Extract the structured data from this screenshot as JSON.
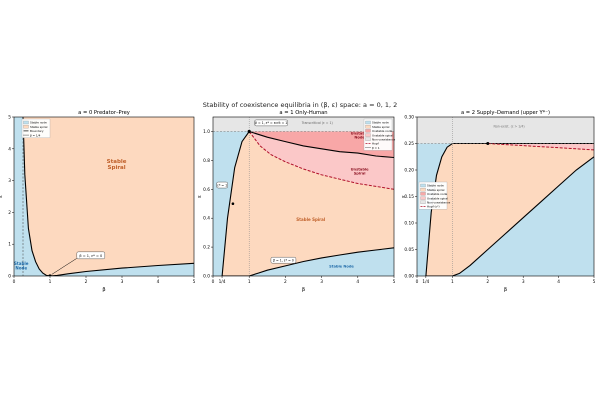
{
  "suptitle": "Stability of coexistence equilibria in (β, ε) space: a = 0, 1, 2",
  "colors": {
    "stable_node": "#bfe0ee",
    "stable_spiral": "#fdd9bf",
    "unstable_node": "#f8a7a7",
    "unstable_spiral": "#fbc8c8",
    "non_coexistence": "#e6e6e6",
    "hopf": "#b0102a",
    "boundary": "#000000"
  },
  "chart_data": [
    {
      "type": "area",
      "title": "a = 0 Predator–Prey",
      "xlabel": "β",
      "ylabel": "ε",
      "xlim": [
        0,
        5
      ],
      "ylim": [
        0,
        5
      ],
      "xticks": [
        "0",
        "1",
        "2",
        "3",
        "4",
        "5"
      ],
      "yticks": [
        "0",
        "1",
        "2",
        "3",
        "4",
        "5"
      ],
      "grid": false,
      "legend_position": "top-left",
      "legend": [
        "Stable node",
        "Stable spiral",
        "Boundary",
        "β = 1/4"
      ],
      "region_labels": {
        "stable_spiral": "Stable\nSpiral",
        "stable_node": "Stable\nNode"
      },
      "annotations": [
        "β = 1, ε* = 0"
      ],
      "boundary": {
        "x": [
          0.25,
          0.3,
          0.4,
          0.5,
          0.6,
          0.7,
          0.8,
          0.9,
          1.0,
          1.2,
          1.5,
          2.0,
          3.0,
          4.0,
          5.0
        ],
        "y": [
          5.0,
          3.2,
          1.5,
          0.8,
          0.45,
          0.22,
          0.09,
          0.02,
          0.0,
          0.02,
          0.07,
          0.14,
          0.25,
          0.33,
          0.4
        ]
      },
      "vline_beta": 0.25
    },
    {
      "type": "area",
      "title": "a = 1 Only-Human",
      "xlabel": "β",
      "ylabel": "ε",
      "xlim": [
        0,
        5
      ],
      "ylim": [
        0,
        1.1
      ],
      "xticks": [
        "0",
        "1/4",
        "1",
        "2",
        "3",
        "4",
        "5"
      ],
      "yticks": [
        "0.0",
        "0.2",
        "0.4",
        "0.6",
        "0.8",
        "1.0"
      ],
      "grid": false,
      "legend_position": "top-right",
      "legend": [
        "Stable node",
        "Stable spiral",
        "Unstable node",
        "Unstable spiral",
        "Non-coexistence",
        "Hopf",
        "β = 1"
      ],
      "region_labels": {
        "unstable_node": "Unstable\nNode",
        "unstable_spiral": "Unstable\nSpiral",
        "stable_spiral": "Stable Spiral",
        "stable_node": "Stable Node"
      },
      "annotations": [
        "β = 1, ε* = εcrit = 1",
        "Transcritical (ε = 1)",
        "ε* = 1",
        "β = 1, ε* = 0"
      ],
      "upper_boundary": {
        "x": [
          0.25,
          0.4,
          0.6,
          0.8,
          1.0,
          1.5,
          2.0,
          2.5,
          3.0,
          3.5,
          4.0,
          4.5,
          5.0
        ],
        "y": [
          0.0,
          0.4,
          0.75,
          0.93,
          1.0,
          0.96,
          0.93,
          0.9,
          0.88,
          0.86,
          0.85,
          0.83,
          0.82
        ]
      },
      "hopf_curve": {
        "x": [
          1.0,
          1.3,
          1.6,
          2.0,
          2.5,
          3.0,
          3.5,
          4.0,
          4.5,
          5.0
        ],
        "y": [
          1.0,
          0.9,
          0.84,
          0.79,
          0.74,
          0.7,
          0.67,
          0.64,
          0.62,
          0.6
        ]
      },
      "lower_boundary": {
        "x": [
          0.25,
          0.5,
          0.75,
          1.0,
          1.25,
          1.5,
          2.0,
          2.5,
          3.0,
          3.5,
          4.0,
          4.5,
          5.0
        ],
        "y": [
          0.0,
          0.0,
          0.0,
          0.0,
          0.02,
          0.04,
          0.07,
          0.1,
          0.125,
          0.145,
          0.165,
          0.18,
          0.195
        ]
      },
      "transcritical_eps": 1.0,
      "vline_beta": 1.0
    },
    {
      "type": "area",
      "title": "a = 2 Supply–Demand (upper Y*⁻)",
      "xlabel": "β",
      "ylabel": "ε",
      "xlim": [
        0,
        5
      ],
      "ylim": [
        0,
        0.3
      ],
      "xticks": [
        "0",
        "1/4",
        "1",
        "2",
        "3",
        "4",
        "5"
      ],
      "yticks": [
        "0.00",
        "0.05",
        "0.10",
        "0.15",
        "0.20",
        "0.25",
        "0.30"
      ],
      "grid": false,
      "legend_position": "left",
      "legend": [
        "Stable node",
        "Stable spiral",
        "Unstable node",
        "Unstable spiral",
        "Non-coexistence",
        "Hopf (ε*)"
      ],
      "annotations": [
        "Non-exist. (ε > 1/4)"
      ],
      "upper_boundary": {
        "x": [
          0.25,
          0.4,
          0.55,
          0.7,
          0.85,
          1.0,
          1.3,
          1.6,
          2.0,
          5.0
        ],
        "y": [
          0.0,
          0.12,
          0.19,
          0.225,
          0.243,
          0.25,
          0.25,
          0.25,
          0.25,
          0.25
        ]
      },
      "lower_boundary": {
        "x": [
          0.25,
          0.5,
          0.75,
          0.9,
          1.0,
          1.2,
          1.5,
          2.0,
          2.5,
          3.0,
          3.5,
          4.0,
          4.5,
          5.0
        ],
        "y": [
          0.0,
          0.0,
          0.0,
          0.0,
          0.0,
          0.005,
          0.02,
          0.05,
          0.08,
          0.11,
          0.14,
          0.17,
          0.2,
          0.225
        ]
      },
      "hopf_curve": {
        "x": [
          2.0,
          2.5,
          3.0,
          3.5,
          4.0,
          4.5,
          5.0
        ],
        "y": [
          0.25,
          0.248,
          0.246,
          0.244,
          0.242,
          0.24,
          0.238
        ]
      },
      "hopf_point": {
        "x": 2.0,
        "y": 0.25
      },
      "existence_eps": 0.25
    }
  ]
}
